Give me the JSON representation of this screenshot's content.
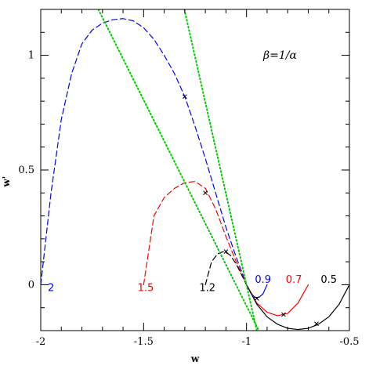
{
  "chart_data": {
    "type": "line",
    "title": "",
    "xlabel": "w",
    "ylabel": "w'",
    "xlim": [
      -2.0,
      -0.5
    ],
    "ylim": [
      -0.2,
      1.2
    ],
    "x_ticks": [
      -2,
      -1.5,
      -1,
      -0.5
    ],
    "x_tick_labels": [
      "-2",
      "-1.5",
      "-1",
      "-0.5"
    ],
    "y_ticks": [
      0,
      0.5,
      1
    ],
    "y_tick_labels": [
      "0",
      "0.5",
      "1"
    ],
    "grid": false,
    "annotation": "β=1/α",
    "series": [
      {
        "name": "2",
        "color": "#0000ff",
        "style": "dashed",
        "x": [
          -2.0,
          -1.95,
          -1.9,
          -1.85,
          -1.8,
          -1.75,
          -1.7,
          -1.65,
          -1.6,
          -1.55,
          -1.5,
          -1.45,
          -1.4,
          -1.35,
          -1.3,
          -1.25,
          -1.2,
          -1.15,
          -1.1,
          -1.05,
          -1.0
        ],
        "y": [
          0.0,
          0.4,
          0.72,
          0.92,
          1.05,
          1.11,
          1.14,
          1.155,
          1.16,
          1.15,
          1.12,
          1.07,
          1.0,
          0.92,
          0.82,
          0.69,
          0.55,
          0.4,
          0.25,
          0.12,
          0.0
        ]
      },
      {
        "name": "1.5",
        "color": "#ff0000",
        "style": "dashed",
        "x": [
          -1.5,
          -1.45,
          -1.4,
          -1.35,
          -1.3,
          -1.25,
          -1.2,
          -1.15,
          -1.1,
          -1.05,
          -1.0
        ],
        "y": [
          0.0,
          0.3,
          0.38,
          0.42,
          0.445,
          0.45,
          0.42,
          0.33,
          0.21,
          0.1,
          0.0
        ]
      },
      {
        "name": "1.2",
        "color": "#000000",
        "style": "dashed",
        "x": [
          -1.2,
          -1.17,
          -1.14,
          -1.11,
          -1.08,
          -1.05,
          -1.0
        ],
        "y": [
          0.0,
          0.1,
          0.135,
          0.145,
          0.13,
          0.09,
          0.0
        ]
      },
      {
        "name": "0.9",
        "color": "#0000ff",
        "style": "solid",
        "x": [
          -1.0,
          -0.98,
          -0.96,
          -0.94,
          -0.92,
          -0.9
        ],
        "y": [
          0.0,
          -0.035,
          -0.055,
          -0.055,
          -0.04,
          0.0
        ]
      },
      {
        "name": "0.7",
        "color": "#ff0000",
        "style": "solid",
        "x": [
          -1.0,
          -0.95,
          -0.9,
          -0.85,
          -0.8,
          -0.75,
          -0.7
        ],
        "y": [
          0.0,
          -0.08,
          -0.12,
          -0.135,
          -0.125,
          -0.08,
          0.0
        ]
      },
      {
        "name": "0.5",
        "color": "#000000",
        "style": "solid",
        "x": [
          -1.0,
          -0.95,
          -0.9,
          -0.85,
          -0.8,
          -0.75,
          -0.7,
          -0.65,
          -0.6,
          -0.55,
          -0.5
        ],
        "y": [
          0.0,
          -0.085,
          -0.14,
          -0.172,
          -0.19,
          -0.195,
          -0.19,
          -0.172,
          -0.14,
          -0.085,
          0.0
        ]
      },
      {
        "name": "",
        "color": "#00cc00",
        "style": "dotted",
        "x": [
          -1.72,
          -0.94
        ],
        "y": [
          1.2,
          -0.2
        ]
      },
      {
        "name": "",
        "color": "#00cc00",
        "style": "dotted",
        "x": [
          -1.302,
          -0.95
        ],
        "y": [
          1.2,
          -0.2
        ]
      }
    ],
    "markers": [
      {
        "x": -1.3,
        "y": 0.82
      },
      {
        "x": -1.2,
        "y": 0.4
      },
      {
        "x": -1.1,
        "y": 0.145
      },
      {
        "x": -0.95,
        "y": -0.06
      },
      {
        "x": -0.82,
        "y": -0.13
      },
      {
        "x": -0.66,
        "y": -0.17
      }
    ],
    "curve_labels": [
      {
        "text": "2",
        "x": -1.95,
        "y": -0.028,
        "color": "#0000ff"
      },
      {
        "text": "1.5",
        "x": -1.49,
        "y": -0.028,
        "color": "#ff0000"
      },
      {
        "text": "1.2",
        "x": -1.19,
        "y": -0.028,
        "color": "#000000"
      },
      {
        "text": "0.9",
        "x": -0.92,
        "y": 0.008,
        "color": "#0000ff"
      },
      {
        "text": "0.7",
        "x": -0.77,
        "y": 0.008,
        "color": "#ff0000"
      },
      {
        "text": "0.5",
        "x": -0.6,
        "y": 0.008,
        "color": "#000000"
      }
    ]
  }
}
